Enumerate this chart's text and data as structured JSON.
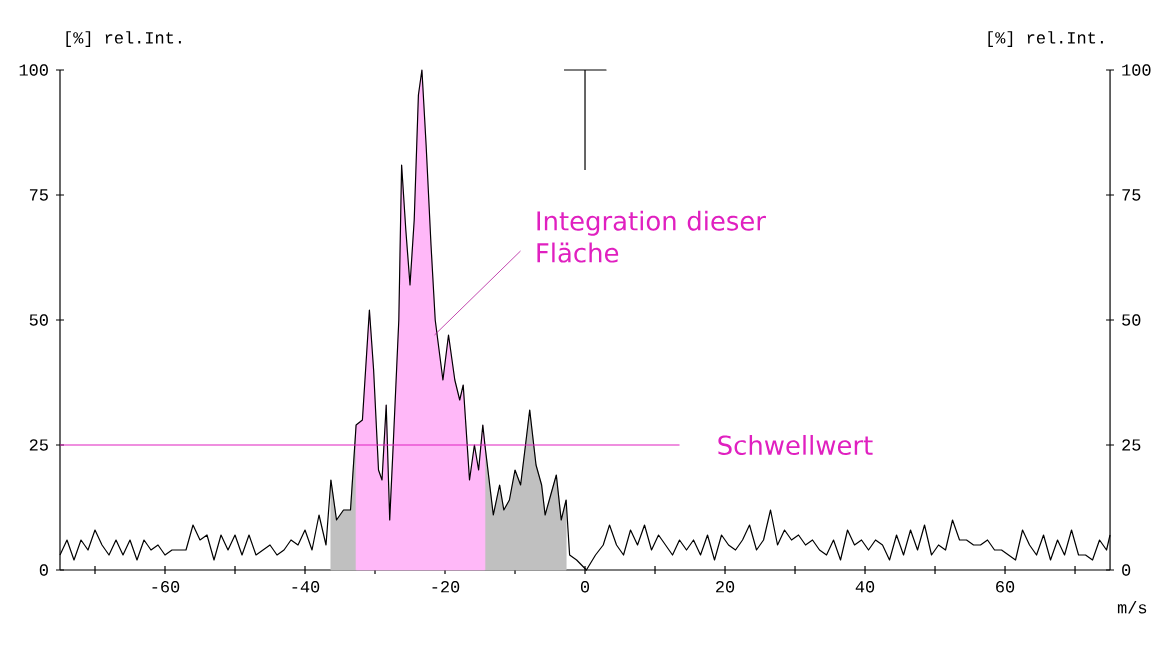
{
  "chart_data": {
    "type": "line",
    "xlabel": "m/s",
    "ylabel": "[%] rel.Int.",
    "y2label": "[%] rel.Int.",
    "xlim": [
      -75,
      75
    ],
    "xticks": [
      {
        "value": -70,
        "label": null
      },
      -60,
      {
        "value": -50,
        "label": null
      },
      -40,
      {
        "value": -30,
        "label": null
      },
      -20,
      {
        "value": -10,
        "label": null
      },
      0,
      {
        "value": 10,
        "label": null
      },
      20,
      {
        "value": 30,
        "label": null
      },
      40,
      {
        "value": 50,
        "label": null
      },
      60,
      {
        "value": 70,
        "label": null
      }
    ],
    "ylim": [
      0,
      100
    ],
    "yticks": [
      0,
      25,
      50,
      75,
      100
    ],
    "y2lim": [
      0,
      100
    ],
    "y2ticks": [
      0,
      25,
      50,
      75,
      100
    ],
    "grid": false,
    "marker": "none",
    "line_style": "solid",
    "series": [
      {
        "type": "area",
        "color": "#c0c0c0",
        "x": [
          -36.3,
          -35.5,
          -34.5,
          -33.5,
          -32.7
        ],
        "values": [
          18,
          10,
          12,
          12,
          29
        ]
      },
      {
        "type": "area",
        "color": "#c0c0c0",
        "x": [
          -14.3,
          -13.1,
          -12.2,
          -11.6,
          -10.8,
          -10,
          -9.2,
          -8.5,
          -7.9,
          -7,
          -6.2,
          -5.7,
          -4.9,
          -4.1,
          -3.4,
          -2.7
        ],
        "values": [
          25,
          11,
          17,
          12,
          14,
          20,
          17,
          25,
          32,
          21,
          17,
          11,
          15,
          19,
          10,
          14
        ]
      },
      {
        "type": "area",
        "color": "#ffb8f8",
        "x": [
          -32.7,
          -31.8,
          -30.8,
          -30.2,
          -29.5,
          -29,
          -28.4,
          -27.9,
          -27.4,
          -26.6,
          -26.2,
          -25.6,
          -25,
          -24.4,
          -23.8,
          -23.3,
          -22.7,
          -22,
          -21.4,
          -20.3,
          -19.5,
          -18.6,
          -17.9,
          -17.4,
          -16.5,
          -15.8,
          -15.2,
          -14.6,
          -14.3
        ],
        "values": [
          29,
          30,
          52,
          40,
          20,
          18,
          33,
          10,
          25,
          50,
          81,
          68,
          57,
          70,
          95,
          100,
          85,
          65,
          50,
          38,
          47,
          38,
          34,
          37,
          18,
          25,
          20,
          29,
          25
        ]
      },
      {
        "color": "#000000",
        "x": [
          -75,
          -74,
          -73,
          -72,
          -71,
          -70,
          -69,
          -68,
          -67,
          -66,
          -65,
          -64,
          -63,
          -62,
          -61,
          -60,
          -59,
          -58,
          -57,
          -56,
          -55,
          -54,
          -53,
          -52,
          -51,
          -50,
          -49,
          -48,
          -47,
          -46,
          -45,
          -44,
          -43,
          -42,
          -41,
          -40,
          -39,
          -38,
          -37,
          -36.3,
          -35.5,
          -34.5,
          -33.5,
          -32.7,
          -31.8,
          -30.8,
          -30.2,
          -29.5,
          -29,
          -28.4,
          -27.9,
          -27.4,
          -26.6,
          -26.2,
          -25.6,
          -25,
          -24.4,
          -23.8,
          -23.3,
          -22.7,
          -22,
          -21.4,
          -20.3,
          -19.5,
          -18.6,
          -17.9,
          -17.4,
          -16.5,
          -15.8,
          -15.2,
          -14.6,
          -14.3,
          -13.1,
          -12.2,
          -11.6,
          -10.8,
          -10,
          -9.2,
          -8.5,
          -7.9,
          -7,
          -6.2,
          -5.7,
          -4.9,
          -4.1,
          -3.4,
          -2.7,
          -2.2,
          -1.2,
          0.2,
          1.5,
          2.6,
          3.5,
          4.5,
          5.5,
          6.5,
          7.5,
          8.5,
          9.5,
          10.5,
          11.5,
          12.5,
          13.5,
          14.5,
          15.5,
          16.5,
          17.5,
          18.5,
          19.5,
          20.5,
          21.5,
          22.5,
          23.5,
          24.5,
          25.5,
          26.5,
          27.5,
          28.5,
          29.5,
          30.5,
          31.5,
          32.5,
          33.5,
          34.5,
          35.5,
          36.5,
          37.5,
          38.5,
          39.5,
          40.5,
          41.5,
          42.5,
          43.5,
          44.5,
          45.5,
          46.5,
          47.5,
          48.5,
          49.5,
          50.5,
          51.5,
          52.5,
          53.5,
          54.5,
          55.5,
          56.5,
          57.5,
          58.5,
          59.5,
          60.5,
          61.5,
          62.5,
          63.5,
          64.5,
          65.5,
          66.5,
          67.5,
          68.5,
          69.5,
          70.5,
          71.5,
          72.5,
          73.5,
          74.5,
          75
        ],
        "values": [
          3,
          6,
          2,
          6,
          4,
          8,
          5,
          3,
          6,
          3,
          6,
          2,
          6,
          4,
          5,
          3,
          4,
          4,
          4,
          9,
          6,
          7,
          2,
          7,
          4,
          7,
          3,
          7,
          3,
          4,
          5,
          3,
          4,
          6,
          5,
          8,
          4,
          11,
          5,
          18,
          10,
          12,
          12,
          29,
          30,
          52,
          40,
          20,
          18,
          33,
          10,
          25,
          50,
          81,
          68,
          57,
          70,
          95,
          100,
          85,
          65,
          50,
          38,
          47,
          38,
          34,
          37,
          18,
          25,
          20,
          29,
          25,
          11,
          17,
          12,
          14,
          20,
          17,
          25,
          32,
          21,
          17,
          11,
          15,
          19,
          10,
          14,
          3,
          2,
          0,
          3,
          5,
          9,
          5,
          3,
          8,
          5,
          9,
          4,
          7,
          5,
          3,
          6,
          4,
          6,
          3,
          7,
          2,
          7,
          5,
          4,
          6,
          9,
          4,
          6,
          12,
          5,
          8,
          6,
          7,
          5,
          6,
          4,
          3,
          6,
          2,
          8,
          5,
          6,
          4,
          6,
          5,
          2,
          7,
          3,
          8,
          4,
          9,
          3,
          5,
          4,
          10,
          6,
          6,
          5,
          5,
          6,
          4,
          4,
          3,
          2,
          8,
          5,
          3,
          7,
          2,
          6,
          3,
          8,
          3,
          3,
          2,
          6,
          4,
          7
        ]
      },
      {
        "color": "#000000",
        "x": [
          -3,
          0,
          3,
          0,
          0
        ],
        "values": [
          100,
          100,
          100,
          100,
          80
        ]
      }
    ],
    "ref_lines": [
      {
        "axis": "y",
        "value": 25,
        "label": "Schwellwert",
        "color": "#e020c0"
      }
    ],
    "annotations": [
      {
        "text": "Integration dieser Fläche",
        "x": -21.5,
        "y": 47
      }
    ]
  }
}
